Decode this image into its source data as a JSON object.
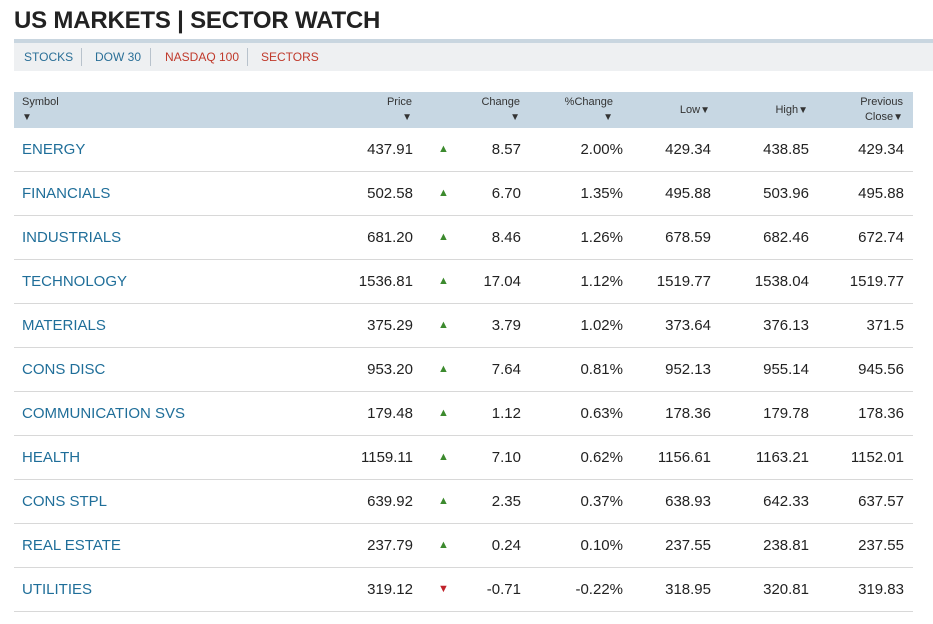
{
  "page": {
    "title": "US MARKETS | SECTOR WATCH"
  },
  "tabs": [
    {
      "label": "STOCKS",
      "color": "#2a6f97"
    },
    {
      "label": "DOW 30",
      "color": "#2a6f97"
    },
    {
      "label": "NASDAQ 100",
      "color": "#c0392b"
    },
    {
      "label": "SECTORS",
      "color": "#c0392b"
    }
  ],
  "table": {
    "headers": {
      "symbol": "Symbol",
      "price": "Price",
      "change": "Change",
      "pct_change": "%Change",
      "low": "Low",
      "high": "High",
      "prev_line1": "Previous",
      "prev_line2": "Close",
      "sort_glyph": "▼"
    },
    "rows": [
      {
        "symbol": "ENERGY",
        "price": "437.91",
        "direction": "up",
        "change": "8.57",
        "pct": "2.00%",
        "low": "429.34",
        "high": "438.85",
        "prev": "429.34"
      },
      {
        "symbol": "FINANCIALS",
        "price": "502.58",
        "direction": "up",
        "change": "6.70",
        "pct": "1.35%",
        "low": "495.88",
        "high": "503.96",
        "prev": "495.88"
      },
      {
        "symbol": "INDUSTRIALS",
        "price": "681.20",
        "direction": "up",
        "change": "8.46",
        "pct": "1.26%",
        "low": "678.59",
        "high": "682.46",
        "prev": "672.74"
      },
      {
        "symbol": "TECHNOLOGY",
        "price": "1536.81",
        "direction": "up",
        "change": "17.04",
        "pct": "1.12%",
        "low": "1519.77",
        "high": "1538.04",
        "prev": "1519.77"
      },
      {
        "symbol": "MATERIALS",
        "price": "375.29",
        "direction": "up",
        "change": "3.79",
        "pct": "1.02%",
        "low": "373.64",
        "high": "376.13",
        "prev": "371.5"
      },
      {
        "symbol": "CONS DISC",
        "price": "953.20",
        "direction": "up",
        "change": "7.64",
        "pct": "0.81%",
        "low": "952.13",
        "high": "955.14",
        "prev": "945.56"
      },
      {
        "symbol": "COMMUNICATION SVS",
        "price": "179.48",
        "direction": "up",
        "change": "1.12",
        "pct": "0.63%",
        "low": "178.36",
        "high": "179.78",
        "prev": "178.36"
      },
      {
        "symbol": "HEALTH",
        "price": "1159.11",
        "direction": "up",
        "change": "7.10",
        "pct": "0.62%",
        "low": "1156.61",
        "high": "1163.21",
        "prev": "1152.01"
      },
      {
        "symbol": "CONS STPL",
        "price": "639.92",
        "direction": "up",
        "change": "2.35",
        "pct": "0.37%",
        "low": "638.93",
        "high": "642.33",
        "prev": "637.57"
      },
      {
        "symbol": "REAL ESTATE",
        "price": "237.79",
        "direction": "up",
        "change": "0.24",
        "pct": "0.10%",
        "low": "237.55",
        "high": "238.81",
        "prev": "237.55"
      },
      {
        "symbol": "UTILITIES",
        "price": "319.12",
        "direction": "down",
        "change": "-0.71",
        "pct": "-0.22%",
        "low": "318.95",
        "high": "320.81",
        "prev": "319.83"
      }
    ]
  },
  "icons": {
    "up": "triangle-up-icon",
    "down": "triangle-down-icon"
  },
  "colors": {
    "up": "#3c8a2e",
    "down": "#c0222a",
    "link": "#1f6e99",
    "header_bg": "#c7d7e3"
  }
}
